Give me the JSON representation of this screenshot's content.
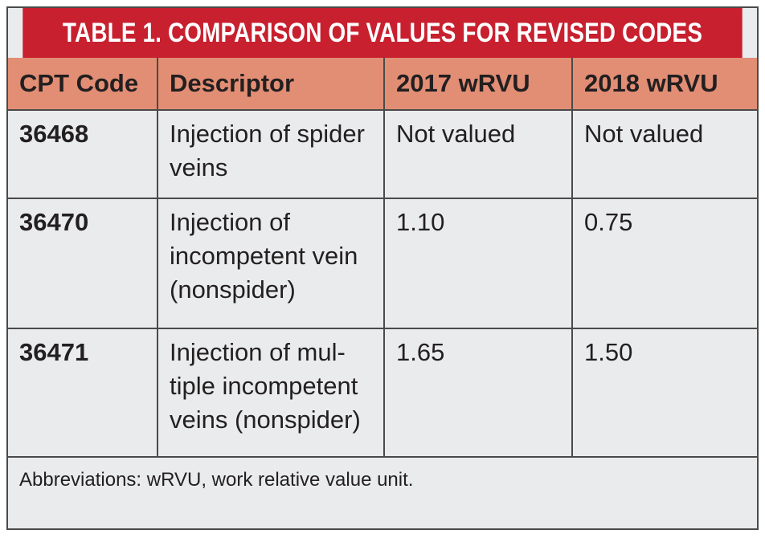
{
  "table": {
    "title": "TABLE 1.  COMPARISON OF VALUES FOR REVISED CODES",
    "headers": [
      "CPT Code",
      "Descriptor",
      "2017 wRVU",
      "2018 wRVU"
    ],
    "rows": [
      {
        "code": "36468",
        "descriptor_lines": [
          "Injection of spider",
          "veins"
        ],
        "wrvu_2017": "Not valued",
        "wrvu_2018": "Not valued"
      },
      {
        "code": "36470",
        "descriptor_lines": [
          "Injection of",
          "incompetent vein",
          "(nonspider)"
        ],
        "wrvu_2017": "1.10",
        "wrvu_2018": "0.75"
      },
      {
        "code": "36471",
        "descriptor_lines": [
          "Injection of mul-",
          "tiple incompetent",
          "veins (nonspider)"
        ],
        "wrvu_2017": "1.65",
        "wrvu_2018": "1.50"
      }
    ],
    "footnote": "Abbreviations: wRVU, work relative value unit."
  },
  "colors": {
    "title_bg": "#c8202f",
    "header_bg": "#e28e74",
    "body_bg": "#e9ebec",
    "border": "#4a4a4a"
  }
}
